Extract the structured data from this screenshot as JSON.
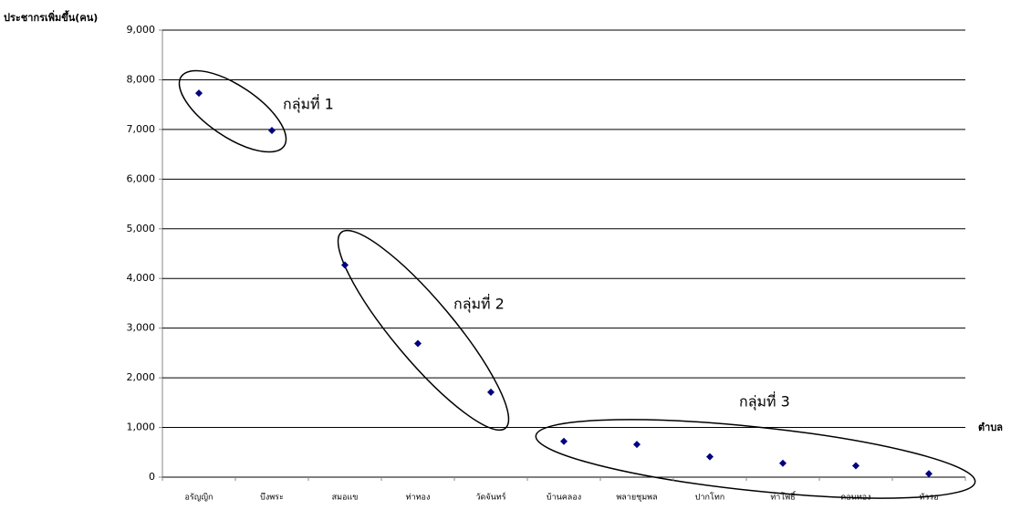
{
  "chart_data": {
    "type": "scatter",
    "y_label": "ประชากรเพิ่มขึ้น(คน)",
    "x_label": "ตำบล",
    "categories": [
      "อรัญญิก",
      "บึงพระ",
      "สมอแข",
      "ท่าทอง",
      "วัดจันทร์",
      "บ้านคลอง",
      "พลายชุมพล",
      "ปากโทก",
      "ท่าโพธิ์",
      "ดอนทอง",
      "หัวรอ"
    ],
    "values": [
      7730,
      6980,
      4270,
      2690,
      1710,
      720,
      660,
      410,
      280,
      230,
      70
    ],
    "color": "#000080",
    "ylim": [
      0,
      9000
    ],
    "yticks": [
      0,
      {
        "value": 1000,
        "label": "1,000"
      },
      {
        "value": 2000,
        "label": "2,000"
      },
      {
        "value": 3000,
        "label": "3,000"
      },
      {
        "value": 4000,
        "label": "4,000"
      },
      {
        "value": 5000,
        "label": "5,000"
      },
      {
        "value": 6000,
        "label": "6,000"
      },
      {
        "value": 7000,
        "label": "7,000"
      },
      {
        "value": 8000,
        "label": "8,000"
      },
      {
        "value": 9000,
        "label": "9,000"
      }
    ],
    "grid": true,
    "annotations": [
      "กลุ่มที่ 1",
      "กลุ่มที่ 2",
      "กลุ่มที่ 3"
    ]
  }
}
